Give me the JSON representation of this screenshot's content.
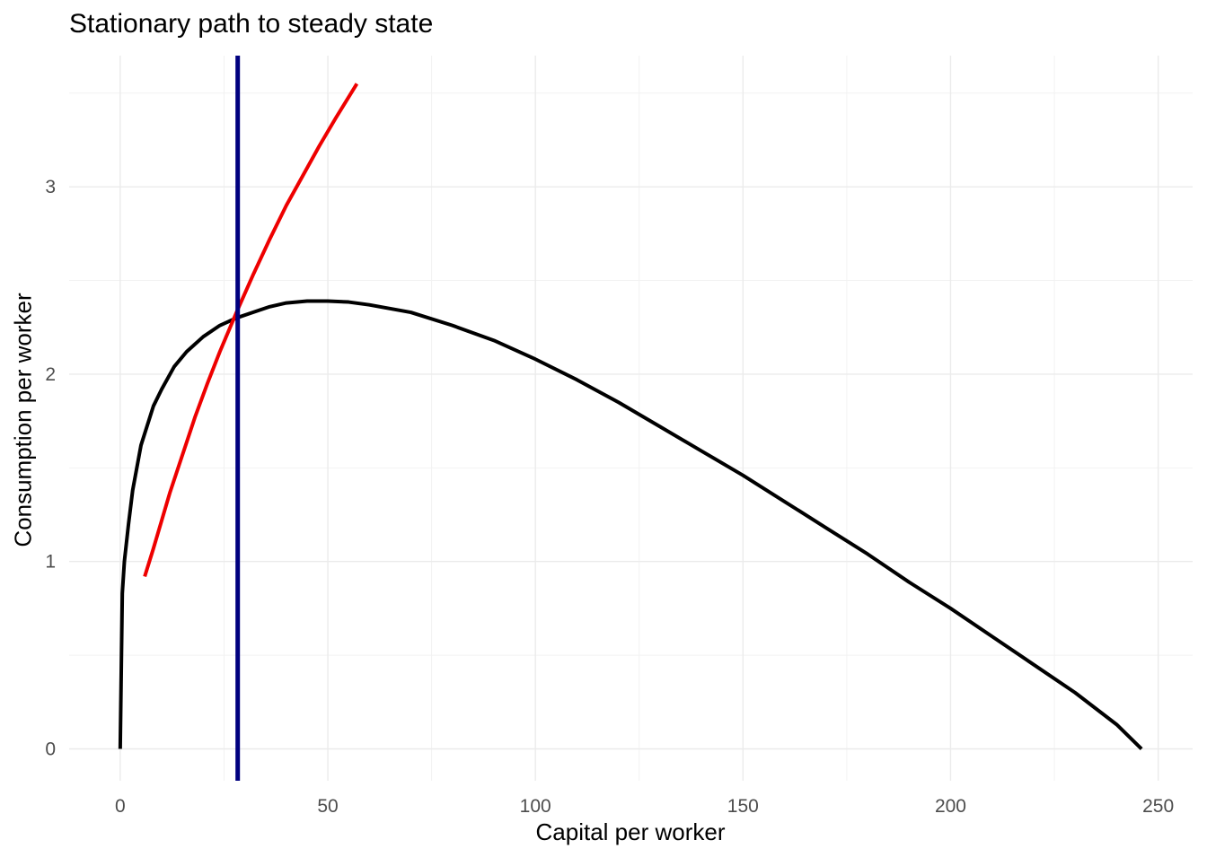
{
  "chart_data": {
    "type": "line",
    "title": "Stationary path to steady state",
    "xlabel": "Capital per worker",
    "ylabel": "Consumption per worker",
    "xlim": [
      -12.3,
      258.3
    ],
    "ylim": [
      -0.17,
      3.7
    ],
    "x_ticks": [
      0,
      50,
      100,
      150,
      200,
      250
    ],
    "x_tick_labels": [
      "0",
      "50",
      "100",
      "150",
      "200",
      "250"
    ],
    "y_ticks": [
      0,
      1,
      2,
      3
    ],
    "y_tick_labels": [
      "0",
      "1",
      "2",
      "3"
    ],
    "grid": true,
    "legend": "none",
    "series": [
      {
        "color": "#000000",
        "x": [
          0,
          0.5,
          1,
          2,
          3,
          5,
          8,
          10,
          13,
          16,
          20,
          24,
          28,
          32,
          36,
          40,
          45,
          50,
          55,
          60,
          70,
          80,
          90,
          100,
          110,
          120,
          130,
          140,
          150,
          160,
          170,
          180,
          190,
          200,
          210,
          220,
          230,
          240,
          246
        ],
        "y": [
          0,
          0.83,
          1.0,
          1.2,
          1.38,
          1.62,
          1.83,
          1.92,
          2.04,
          2.12,
          2.2,
          2.26,
          2.3,
          2.33,
          2.36,
          2.38,
          2.39,
          2.39,
          2.385,
          2.37,
          2.33,
          2.26,
          2.18,
          2.08,
          1.97,
          1.85,
          1.72,
          1.59,
          1.46,
          1.32,
          1.18,
          1.04,
          0.89,
          0.75,
          0.6,
          0.45,
          0.3,
          0.13,
          0
        ]
      },
      {
        "color": "#ee0000",
        "x": [
          5.9,
          8,
          10,
          12,
          15,
          18,
          21,
          24,
          28,
          32,
          36,
          40,
          44,
          48,
          52,
          57
        ],
        "y": [
          0.92,
          1.07,
          1.22,
          1.37,
          1.57,
          1.77,
          1.95,
          2.12,
          2.33,
          2.53,
          2.72,
          2.9,
          3.06,
          3.22,
          3.37,
          3.55
        ]
      }
    ],
    "vlines": [
      {
        "x": 28.3,
        "color": "#00007f"
      }
    ]
  }
}
